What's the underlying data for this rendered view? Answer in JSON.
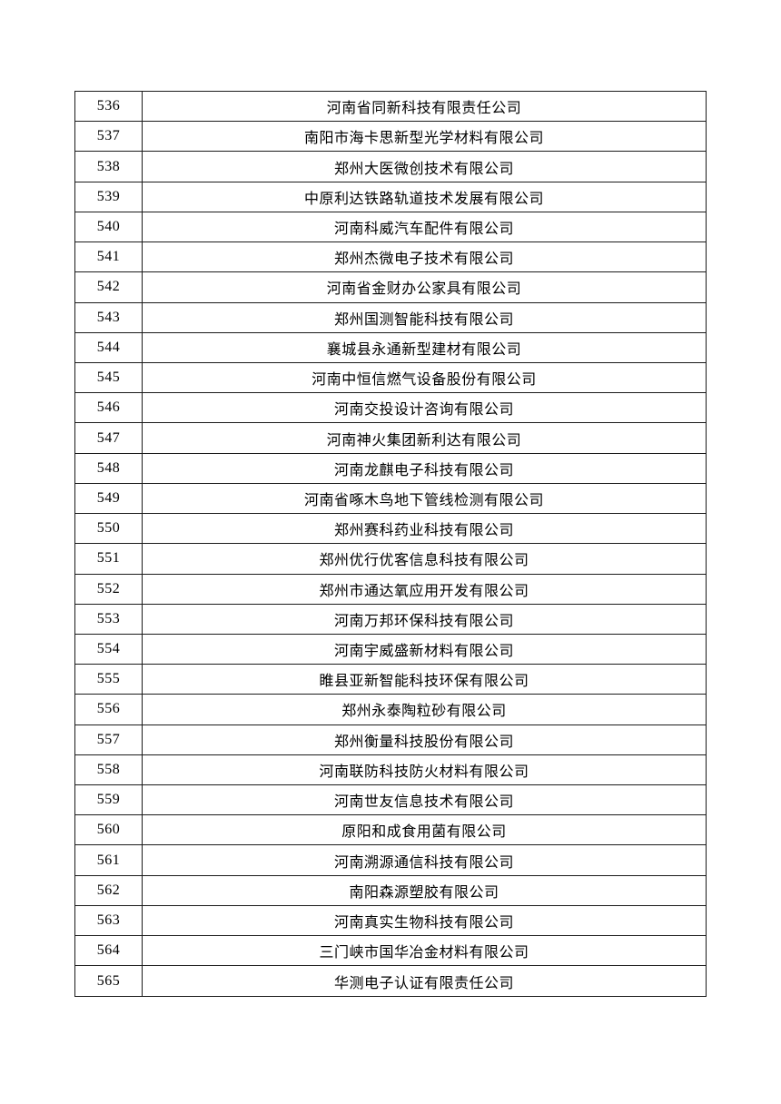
{
  "colors": {
    "background": "#ffffff",
    "text": "#000000",
    "table_border": "#1a1a1a"
  },
  "table": {
    "rows": [
      {
        "no": "536",
        "name": "河南省同新科技有限责任公司"
      },
      {
        "no": "537",
        "name": "南阳市海卡思新型光学材料有限公司"
      },
      {
        "no": "538",
        "name": "郑州大医微创技术有限公司"
      },
      {
        "no": "539",
        "name": "中原利达铁路轨道技术发展有限公司"
      },
      {
        "no": "540",
        "name": "河南科威汽车配件有限公司"
      },
      {
        "no": "541",
        "name": "郑州杰微电子技术有限公司"
      },
      {
        "no": "542",
        "name": "河南省金财办公家具有限公司"
      },
      {
        "no": "543",
        "name": "郑州国测智能科技有限公司"
      },
      {
        "no": "544",
        "name": "襄城县永通新型建材有限公司"
      },
      {
        "no": "545",
        "name": "河南中恒信燃气设备股份有限公司"
      },
      {
        "no": "546",
        "name": "河南交投设计咨询有限公司"
      },
      {
        "no": "547",
        "name": "河南神火集团新利达有限公司"
      },
      {
        "no": "548",
        "name": "河南龙麒电子科技有限公司"
      },
      {
        "no": "549",
        "name": "河南省啄木鸟地下管线检测有限公司"
      },
      {
        "no": "550",
        "name": "郑州赛科药业科技有限公司"
      },
      {
        "no": "551",
        "name": "郑州优行优客信息科技有限公司"
      },
      {
        "no": "552",
        "name": "郑州市通达氧应用开发有限公司"
      },
      {
        "no": "553",
        "name": "河南万邦环保科技有限公司"
      },
      {
        "no": "554",
        "name": "河南宇威盛新材料有限公司"
      },
      {
        "no": "555",
        "name": "睢县亚新智能科技环保有限公司"
      },
      {
        "no": "556",
        "name": "郑州永泰陶粒砂有限公司"
      },
      {
        "no": "557",
        "name": "郑州衡量科技股份有限公司"
      },
      {
        "no": "558",
        "name": "河南联防科技防火材料有限公司"
      },
      {
        "no": "559",
        "name": "河南世友信息技术有限公司"
      },
      {
        "no": "560",
        "name": "原阳和成食用菌有限公司"
      },
      {
        "no": "561",
        "name": "河南溯源通信科技有限公司"
      },
      {
        "no": "562",
        "name": "南阳森源塑胶有限公司"
      },
      {
        "no": "563",
        "name": "河南真实生物科技有限公司"
      },
      {
        "no": "564",
        "name": "三门峡市国华冶金材料有限公司"
      },
      {
        "no": "565",
        "name": "华测电子认证有限责任公司"
      }
    ]
  }
}
